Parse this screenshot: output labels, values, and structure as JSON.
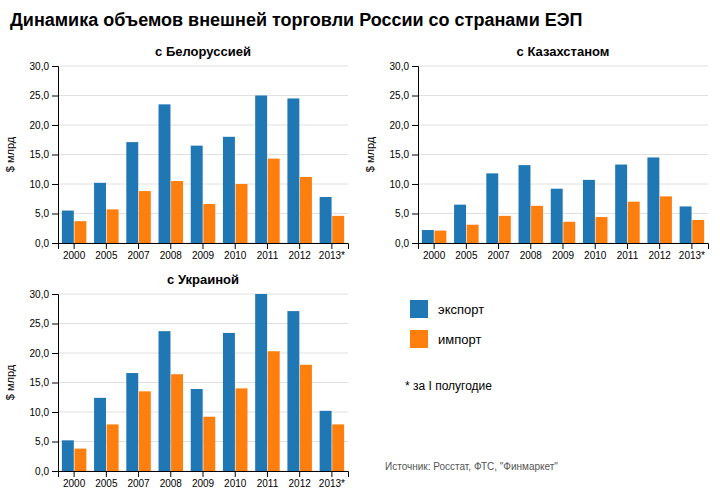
{
  "title": "Динамика объемов внешней торговли России со странами ЕЭП",
  "annotations": [
    "* за I полугодие",
    "Источник: Росстат, ФТС, \"Финмаркет\""
  ],
  "chart_data": [
    {
      "type": "bar",
      "title": "с Белоруссией",
      "categories": [
        "2000",
        "2005",
        "2007",
        "2008",
        "2009",
        "2010",
        "2011",
        "2012",
        "2013*"
      ],
      "series": [
        {
          "name": "экспорт",
          "values": [
            5.5,
            10.2,
            17.1,
            23.5,
            16.5,
            18.0,
            25.0,
            24.5,
            7.8
          ]
        },
        {
          "name": "импорт",
          "values": [
            3.7,
            5.7,
            8.8,
            10.5,
            6.6,
            10.0,
            14.3,
            11.2,
            4.6
          ]
        }
      ],
      "ylabel": "$ млрд",
      "ylim": [
        0,
        30
      ],
      "yticks": [
        {
          "value": 0,
          "label": "0,0"
        },
        {
          "value": 5,
          "label": "5,0"
        },
        {
          "value": 10,
          "label": "10,0"
        },
        {
          "value": 15,
          "label": "15,0"
        },
        {
          "value": 20,
          "label": "20,0"
        },
        {
          "value": 25,
          "label": "25,0"
        },
        {
          "value": 30,
          "label": "30,0"
        }
      ],
      "grid": true
    },
    {
      "type": "bar",
      "title": "с Казахстаном",
      "categories": [
        "2000",
        "2005",
        "2007",
        "2008",
        "2009",
        "2010",
        "2011",
        "2012",
        "2013*"
      ],
      "series": [
        {
          "name": "экспорт",
          "values": [
            2.2,
            6.5,
            11.8,
            13.2,
            9.2,
            10.7,
            13.3,
            14.5,
            6.2
          ]
        },
        {
          "name": "импорт",
          "values": [
            2.1,
            3.1,
            4.6,
            6.3,
            3.6,
            4.4,
            7.0,
            7.9,
            3.9
          ]
        }
      ],
      "ylabel": "$ млрд",
      "ylim": [
        0,
        30
      ],
      "yticks": [
        {
          "value": 0,
          "label": "0,0"
        },
        {
          "value": 5,
          "label": "5,0"
        },
        {
          "value": 10,
          "label": "10,0"
        },
        {
          "value": 15,
          "label": "15,0"
        },
        {
          "value": 20,
          "label": "20,0"
        },
        {
          "value": 25,
          "label": "25,0"
        },
        {
          "value": 30,
          "label": "30,0"
        }
      ],
      "grid": true
    },
    {
      "type": "bar",
      "title": "с Украиной",
      "categories": [
        "2000",
        "2005",
        "2007",
        "2008",
        "2009",
        "2010",
        "2011",
        "2012",
        "2013*"
      ],
      "series": [
        {
          "name": "экспорт",
          "values": [
            5.2,
            12.4,
            16.6,
            23.7,
            13.9,
            23.4,
            30.0,
            27.1,
            10.2
          ]
        },
        {
          "name": "импорт",
          "values": [
            3.8,
            7.9,
            13.5,
            16.4,
            9.2,
            14.0,
            20.3,
            18.0,
            7.9
          ]
        }
      ],
      "ylabel": "$ млрд",
      "ylim": [
        0,
        30
      ],
      "yticks": [
        {
          "value": 0,
          "label": "0,0"
        },
        {
          "value": 5,
          "label": "5,0"
        },
        {
          "value": 10,
          "label": "10,0"
        },
        {
          "value": 15,
          "label": "15,0"
        },
        {
          "value": 20,
          "label": "20,0"
        },
        {
          "value": 25,
          "label": "25,0"
        },
        {
          "value": 30,
          "label": "30,0"
        }
      ],
      "grid": true
    }
  ]
}
